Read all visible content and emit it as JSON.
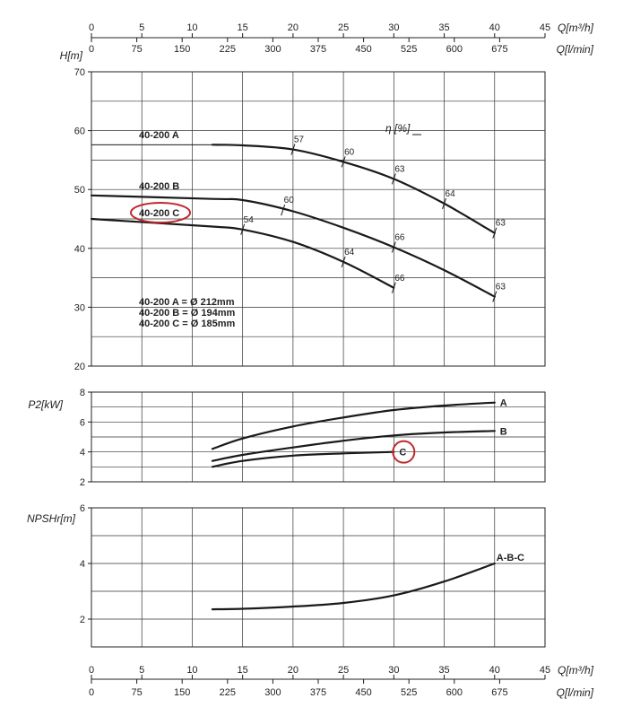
{
  "chart_data": [
    {
      "type": "line",
      "name": "head",
      "ylabel": "H[m]",
      "ylim": [
        20,
        70
      ],
      "yticks": [
        20,
        30,
        40,
        50,
        60,
        70
      ],
      "xlim": [
        0,
        45
      ],
      "series": [
        {
          "name": "40-200 A",
          "label": "40-200 A",
          "x": [
            12,
            15,
            20,
            25,
            30,
            35,
            40
          ],
          "y": [
            57.6,
            57.5,
            56.8,
            54.7,
            51.8,
            47.6,
            42.6
          ]
        },
        {
          "name": "40-200 B",
          "label": "40-200 B",
          "x": [
            0,
            12,
            15,
            20,
            25,
            30,
            35,
            40
          ],
          "y": [
            49,
            48.4,
            48.2,
            46.3,
            43.5,
            40.2,
            36.3,
            31.8
          ]
        },
        {
          "name": "40-200 C",
          "label": "40-200 C",
          "x": [
            0,
            12,
            15,
            20,
            25,
            30
          ],
          "y": [
            45,
            43.7,
            43.2,
            41.1,
            37.7,
            33.3
          ]
        }
      ],
      "efficiency_title": "η [%]",
      "efficiency_marks": [
        {
          "x": 20,
          "y": 56.8,
          "label": "57"
        },
        {
          "x": 25,
          "y": 54.7,
          "label": "60"
        },
        {
          "x": 30,
          "y": 51.8,
          "label": "63"
        },
        {
          "x": 35,
          "y": 47.6,
          "label": "64"
        },
        {
          "x": 40,
          "y": 42.6,
          "label": "63"
        },
        {
          "x": 19,
          "y": 46.5,
          "label": "60"
        },
        {
          "x": 30,
          "y": 40.2,
          "label": "66"
        },
        {
          "x": 40,
          "y": 31.8,
          "label": "63"
        },
        {
          "x": 15,
          "y": 43.2,
          "label": "54"
        },
        {
          "x": 25,
          "y": 37.7,
          "label": "64"
        },
        {
          "x": 30,
          "y": 33.3,
          "label": "66"
        }
      ],
      "diameter_legend": [
        "40-200 A = Ø 212mm",
        "40-200 B = Ø 194mm",
        "40-200 C = Ø 185mm"
      ],
      "highlight_label": "40-200 C"
    },
    {
      "type": "line",
      "name": "power",
      "ylabel": "P2[kW]",
      "ylim": [
        2,
        8
      ],
      "yticks": [
        2,
        4,
        6,
        8
      ],
      "xlim": [
        0,
        45
      ],
      "series": [
        {
          "name": "A",
          "label": "A",
          "x": [
            12,
            15,
            20,
            25,
            30,
            35,
            40
          ],
          "y": [
            4.2,
            4.9,
            5.7,
            6.3,
            6.8,
            7.1,
            7.3
          ]
        },
        {
          "name": "B",
          "label": "B",
          "x": [
            12,
            15,
            20,
            25,
            30,
            35,
            40
          ],
          "y": [
            3.4,
            3.8,
            4.3,
            4.75,
            5.1,
            5.3,
            5.4
          ]
        },
        {
          "name": "C",
          "label": "C",
          "x": [
            12,
            15,
            20,
            25,
            30
          ],
          "y": [
            3.0,
            3.4,
            3.75,
            3.9,
            4.0
          ]
        }
      ],
      "highlight_label": "C"
    },
    {
      "type": "line",
      "name": "npsh",
      "ylabel": "NPSHr[m]",
      "ylim": [
        1,
        6
      ],
      "yticks": [
        2,
        4,
        6
      ],
      "xlim": [
        0,
        45
      ],
      "series": [
        {
          "name": "A-B-C",
          "label": "A-B-C",
          "x": [
            12,
            15,
            20,
            25,
            30,
            35,
            40
          ],
          "y": [
            2.35,
            2.37,
            2.45,
            2.58,
            2.85,
            3.35,
            4.0
          ]
        }
      ]
    }
  ],
  "axes": {
    "flow_unit_top": "Q[m³/h]",
    "flow_unit_bottom": "Q[l/min]",
    "m3h_ticks": [
      "0",
      "5",
      "10",
      "15",
      "20",
      "25",
      "30",
      "35",
      "40",
      "45"
    ],
    "lmin_ticks": [
      "0",
      "75",
      "150",
      "225",
      "300",
      "375",
      "450",
      "525",
      "600",
      "675"
    ]
  },
  "colors": {
    "highlight": "#c0282d",
    "line": "#1a1a1a"
  }
}
